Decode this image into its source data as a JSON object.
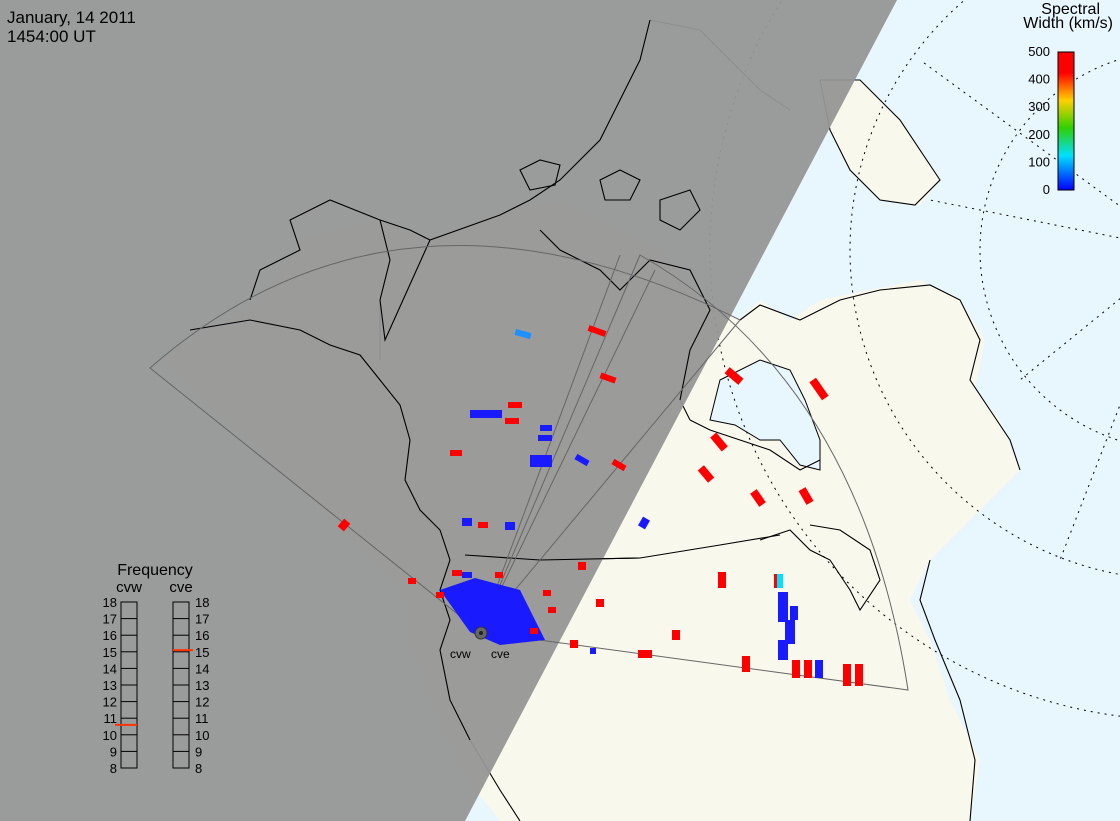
{
  "header": {
    "date": "January, 14 2011",
    "time": "1454:00 UT"
  },
  "colorbar": {
    "title_line1": "Spectral",
    "title_line2": "Width (km/s)",
    "ticks": [
      "500",
      "400",
      "300",
      "200",
      "100",
      "0"
    ],
    "min": 0,
    "max": 500,
    "colors": [
      "#ff0000",
      "#ff8c00",
      "#ffe000",
      "#30d000",
      "#00e0ff",
      "#0000ff"
    ]
  },
  "frequency_panel": {
    "title": "Frequency",
    "radars": [
      {
        "name": "cvw",
        "ticks": [
          "18",
          "17",
          "16",
          "15",
          "14",
          "13",
          "12",
          "11",
          "10",
          "9",
          "8"
        ],
        "value_mhz": 10.6
      },
      {
        "name": "cve",
        "ticks": [
          "18",
          "17",
          "16",
          "15",
          "14",
          "13",
          "12",
          "11",
          "10",
          "9",
          "8"
        ],
        "value_mhz": 15.1
      }
    ],
    "marker_color": "#ff3300"
  },
  "radar_sites": [
    {
      "name": "cvw"
    },
    {
      "name": "cve"
    }
  ],
  "map": {
    "night_color": "#969696",
    "ocean_color": "#e8f6fd",
    "land_color": "#f8f8ec",
    "fov_color": "#666666",
    "grid_style": "dotted"
  }
}
